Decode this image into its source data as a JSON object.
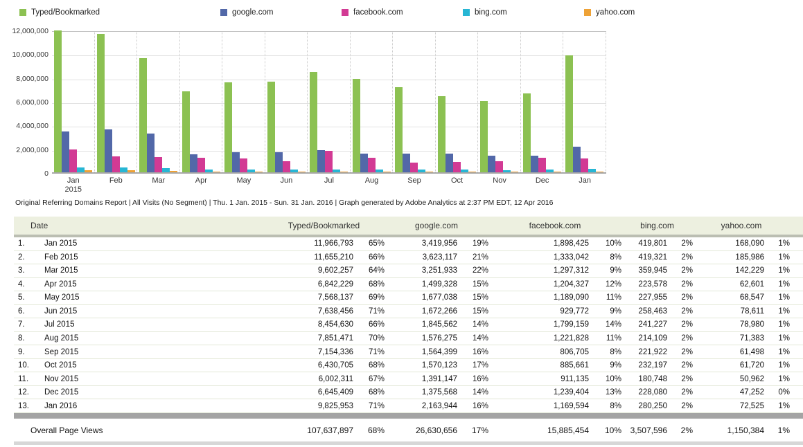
{
  "legend": {
    "items": [
      {
        "label": "Typed/Bookmarked",
        "color": "#8cc152"
      },
      {
        "label": "google.com",
        "color": "#5268a8"
      },
      {
        "label": "facebook.com",
        "color": "#d23a94"
      },
      {
        "label": "bing.com",
        "color": "#27b6d4"
      },
      {
        "label": "yahoo.com",
        "color": "#eea236"
      }
    ]
  },
  "chart_data": {
    "type": "bar",
    "title": "",
    "xlabel": "",
    "ylabel": "",
    "ylim": [
      0,
      12000000
    ],
    "grid": true,
    "legend_position": "top",
    "y_tick_labels": [
      "12,000,000",
      "10,000,000",
      "8,000,000",
      "6,000,000",
      "4,000,000",
      "2,000,000",
      "0"
    ],
    "categories": [
      "Jan",
      "Feb",
      "Mar",
      "Apr",
      "May",
      "Jun",
      "Jul",
      "Aug",
      "Sep",
      "Oct",
      "Nov",
      "Dec",
      "Jan"
    ],
    "first_category_year": "2015",
    "series": [
      {
        "name": "Typed/Bookmarked",
        "color": "#8cc152",
        "values": [
          11966793,
          11655210,
          9602257,
          6842229,
          7568137,
          7638456,
          8454630,
          7851471,
          7154336,
          6430705,
          6002311,
          6645409,
          9825953
        ]
      },
      {
        "name": "google.com",
        "color": "#5268a8",
        "values": [
          3419956,
          3623117,
          3251933,
          1499328,
          1677038,
          1672266,
          1845562,
          1576275,
          1564399,
          1570123,
          1391147,
          1375568,
          2163944
        ]
      },
      {
        "name": "facebook.com",
        "color": "#d23a94",
        "values": [
          1898425,
          1333042,
          1297312,
          1204327,
          1189090,
          929772,
          1799159,
          1221828,
          806705,
          885661,
          911135,
          1239404,
          1169594
        ]
      },
      {
        "name": "bing.com",
        "color": "#27b6d4",
        "values": [
          419801,
          419321,
          359945,
          223578,
          227955,
          258463,
          241227,
          214109,
          221922,
          232197,
          180748,
          228080,
          280250
        ]
      },
      {
        "name": "yahoo.com",
        "color": "#eea236",
        "values": [
          168090,
          185986,
          142229,
          62601,
          68547,
          78611,
          78980,
          71383,
          61498,
          61720,
          50962,
          47252,
          72525
        ]
      }
    ]
  },
  "caption": "Original Referring Domains Report | All Visits (No Segment) | Thu.  1 Jan. 2015 - Sun. 31 Jan. 2016 | Graph generated by Adobe Analytics at  2:37 PM EDT, 12 Apr 2016",
  "table": {
    "columns": [
      "Date",
      "Typed/Bookmarked",
      "google.com",
      "facebook.com",
      "bing.com",
      "yahoo.com"
    ],
    "rows": [
      {
        "num": "1.",
        "date": "Jan 2015",
        "values": [
          "11,966,793",
          "65%",
          "3,419,956",
          "19%",
          "1,898,425",
          "10%",
          "419,801",
          "2%",
          "168,090",
          "1%"
        ]
      },
      {
        "num": "2.",
        "date": "Feb 2015",
        "values": [
          "11,655,210",
          "66%",
          "3,623,117",
          "21%",
          "1,333,042",
          "8%",
          "419,321",
          "2%",
          "185,986",
          "1%"
        ]
      },
      {
        "num": "3.",
        "date": "Mar 2015",
        "values": [
          "9,602,257",
          "64%",
          "3,251,933",
          "22%",
          "1,297,312",
          "9%",
          "359,945",
          "2%",
          "142,229",
          "1%"
        ]
      },
      {
        "num": "4.",
        "date": "Apr 2015",
        "values": [
          "6,842,229",
          "68%",
          "1,499,328",
          "15%",
          "1,204,327",
          "12%",
          "223,578",
          "2%",
          "62,601",
          "1%"
        ]
      },
      {
        "num": "5.",
        "date": "May 2015",
        "values": [
          "7,568,137",
          "69%",
          "1,677,038",
          "15%",
          "1,189,090",
          "11%",
          "227,955",
          "2%",
          "68,547",
          "1%"
        ]
      },
      {
        "num": "6.",
        "date": "Jun 2015",
        "values": [
          "7,638,456",
          "71%",
          "1,672,266",
          "15%",
          "929,772",
          "9%",
          "258,463",
          "2%",
          "78,611",
          "1%"
        ]
      },
      {
        "num": "7.",
        "date": "Jul 2015",
        "values": [
          "8,454,630",
          "66%",
          "1,845,562",
          "14%",
          "1,799,159",
          "14%",
          "241,227",
          "2%",
          "78,980",
          "1%"
        ]
      },
      {
        "num": "8.",
        "date": "Aug 2015",
        "values": [
          "7,851,471",
          "70%",
          "1,576,275",
          "14%",
          "1,221,828",
          "11%",
          "214,109",
          "2%",
          "71,383",
          "1%"
        ]
      },
      {
        "num": "9.",
        "date": "Sep 2015",
        "values": [
          "7,154,336",
          "71%",
          "1,564,399",
          "16%",
          "806,705",
          "8%",
          "221,922",
          "2%",
          "61,498",
          "1%"
        ]
      },
      {
        "num": "10.",
        "date": "Oct 2015",
        "values": [
          "6,430,705",
          "68%",
          "1,570,123",
          "17%",
          "885,661",
          "9%",
          "232,197",
          "2%",
          "61,720",
          "1%"
        ]
      },
      {
        "num": "11.",
        "date": "Nov 2015",
        "values": [
          "6,002,311",
          "67%",
          "1,391,147",
          "16%",
          "911,135",
          "10%",
          "180,748",
          "2%",
          "50,962",
          "1%"
        ]
      },
      {
        "num": "12.",
        "date": "Dec 2015",
        "values": [
          "6,645,409",
          "68%",
          "1,375,568",
          "14%",
          "1,239,404",
          "13%",
          "228,080",
          "2%",
          "47,252",
          "0%"
        ]
      },
      {
        "num": "13.",
        "date": "Jan 2016",
        "values": [
          "9,825,953",
          "71%",
          "2,163,944",
          "16%",
          "1,169,594",
          "8%",
          "280,250",
          "2%",
          "72,525",
          "1%"
        ]
      }
    ],
    "footer": {
      "label": "Overall Page Views",
      "values": [
        "107,637,897",
        "68%",
        "26,630,656",
        "17%",
        "15,885,454",
        "10%",
        "3,507,596",
        "2%",
        "1,150,384",
        "1%"
      ]
    }
  }
}
